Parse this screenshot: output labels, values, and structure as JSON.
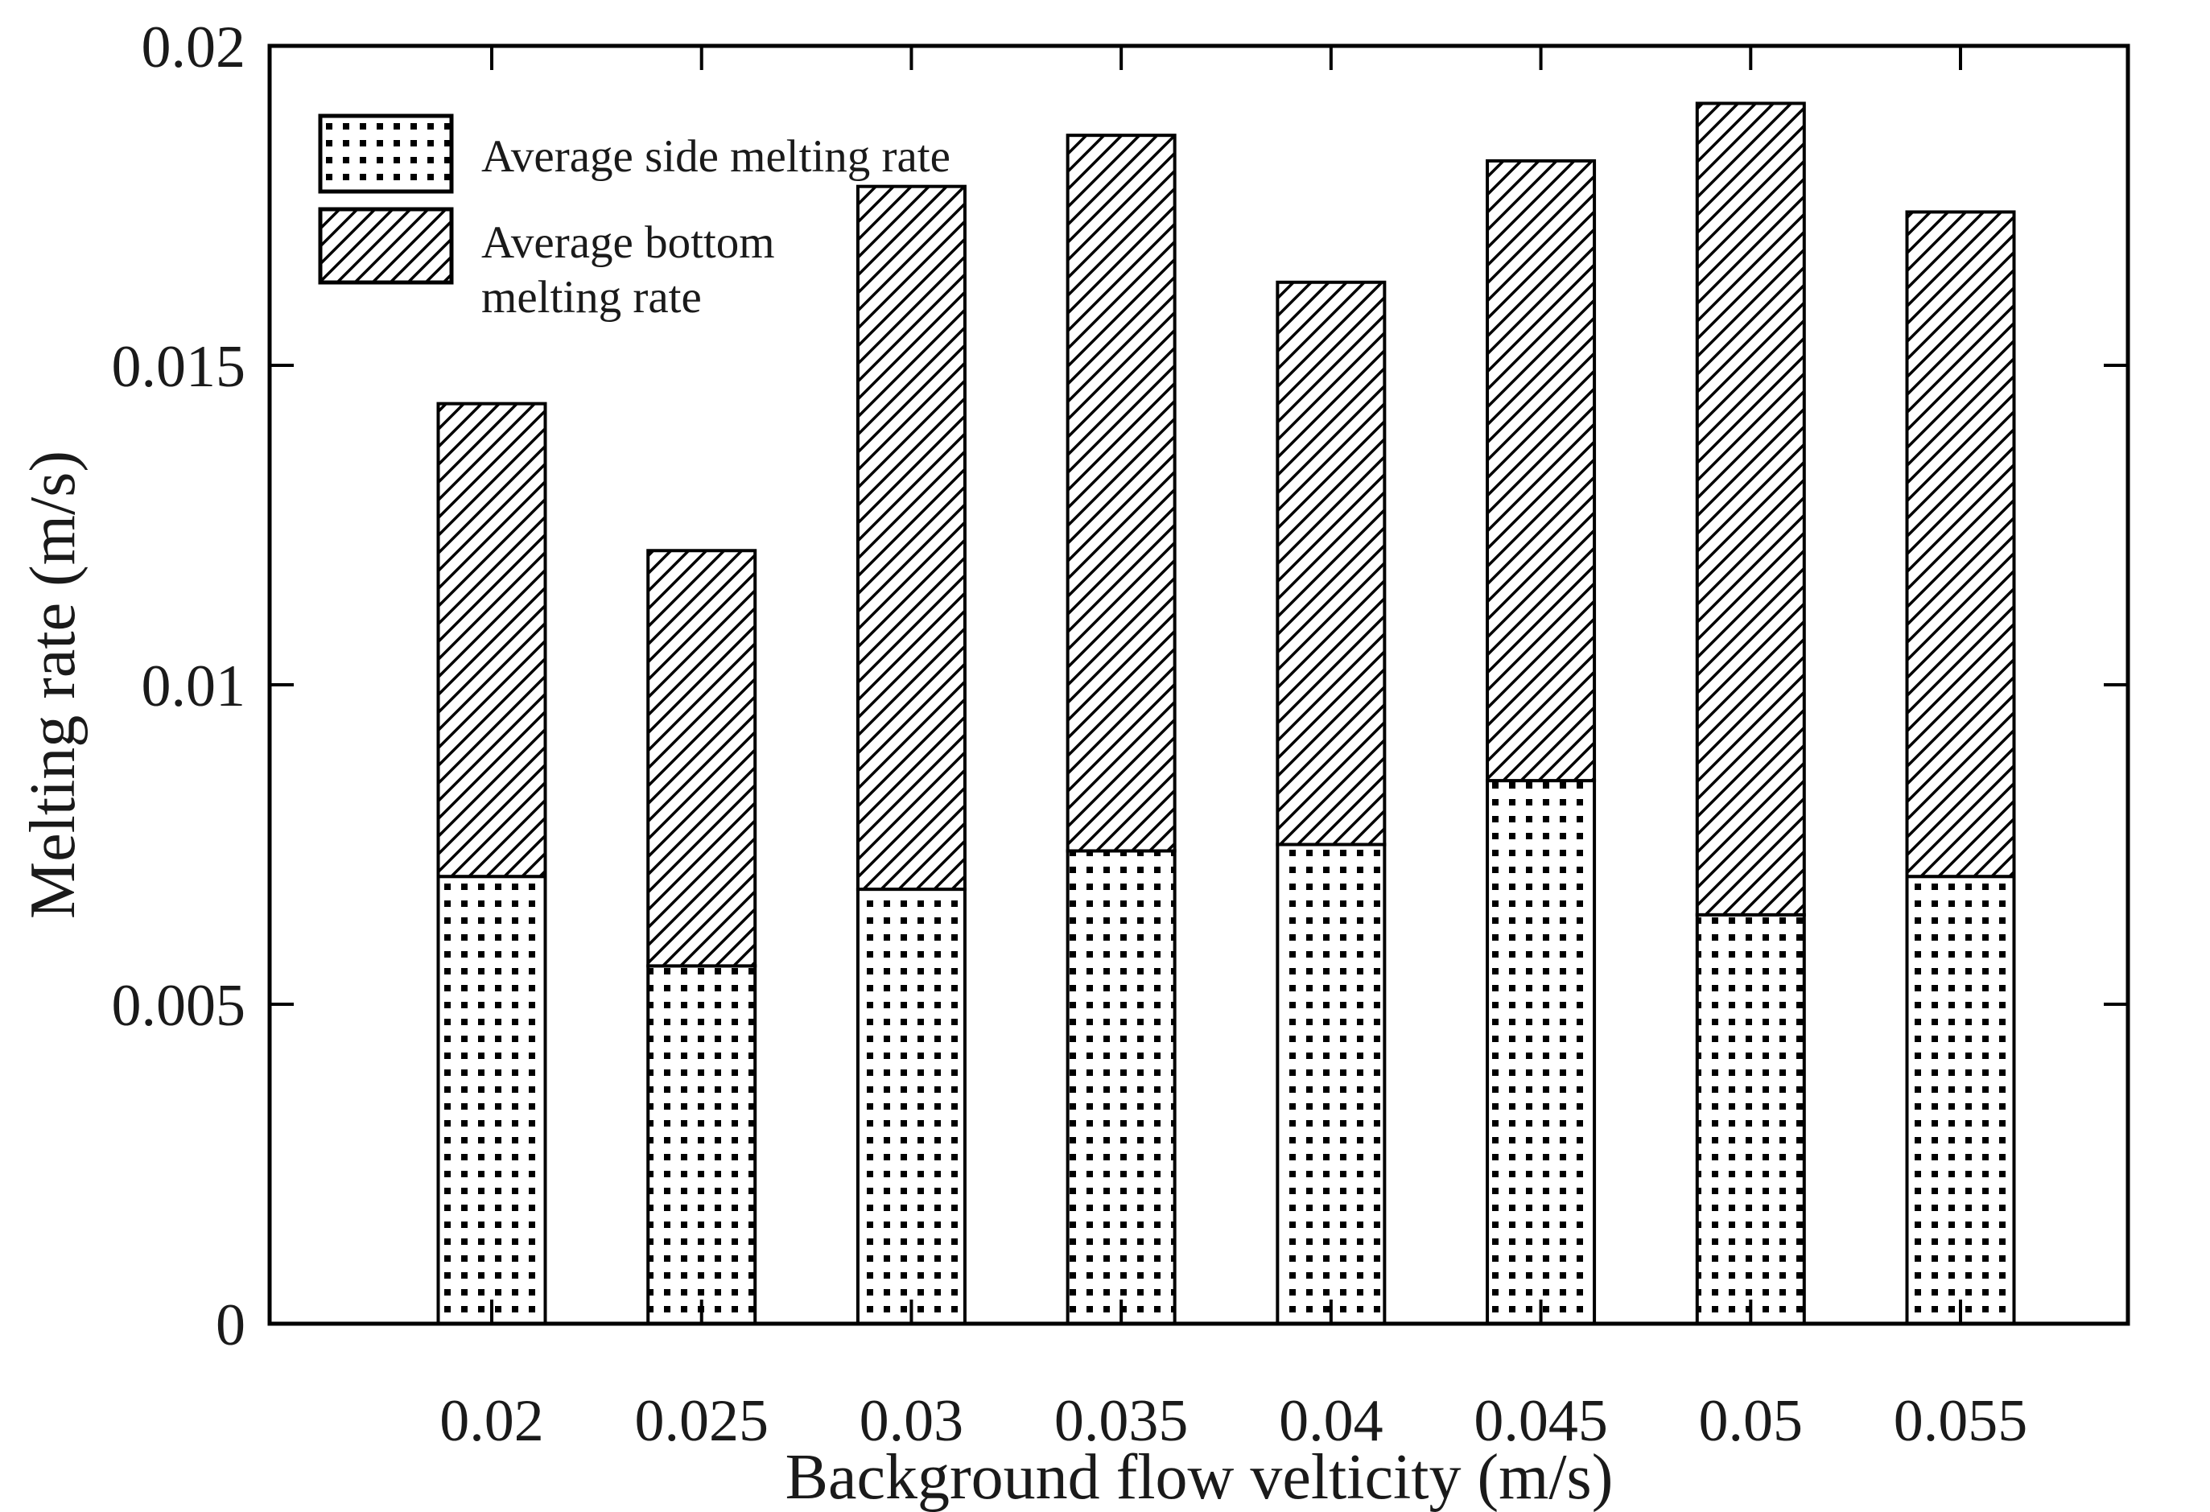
{
  "figure": {
    "background": "#ffffff"
  },
  "chart_data": {
    "type": "bar",
    "stacked": true,
    "title": "",
    "xlabel": "Background flow velticity (m/s)",
    "ylabel": "Melting rate (m/s)",
    "categories": [
      "0.02",
      "0.025",
      "0.03",
      "0.035",
      "0.04",
      "0.045",
      "0.05",
      "0.055"
    ],
    "series": [
      {
        "name": "Average side melting rate",
        "pattern": "dots",
        "values": [
          0.007,
          0.0056,
          0.0068,
          0.0074,
          0.0075,
          0.0085,
          0.0064,
          0.007
        ]
      },
      {
        "name": "Average bottom melting rate",
        "pattern": "diagonal-hatch",
        "values": [
          0.0074,
          0.0065,
          0.011,
          0.0112,
          0.0088,
          0.0097,
          0.0127,
          0.0104
        ]
      }
    ],
    "stack_totals": [
      0.0144,
      0.0121,
      0.0178,
      0.0186,
      0.0163,
      0.0182,
      0.0191,
      0.0174
    ],
    "ylim": [
      0,
      0.02
    ],
    "yticks": [
      {
        "value": 0,
        "label": "0"
      },
      {
        "value": 0.005,
        "label": "0.005"
      },
      {
        "value": 0.01,
        "label": "0.01"
      },
      {
        "value": 0.015,
        "label": "0.015"
      },
      {
        "value": 0.02,
        "label": "0.02"
      }
    ],
    "grid": false,
    "legend_position": "top-left-inside",
    "legend": [
      {
        "label": "Average side melting rate",
        "lines": [
          "Average side melting rate"
        ],
        "pattern": "dots"
      },
      {
        "label": "Average bottom melting rate",
        "lines": [
          "Average bottom",
          "melting rate"
        ],
        "pattern": "diagonal-hatch"
      }
    ],
    "colors": {
      "bar_fill": "#ffffff",
      "stroke": "#000000",
      "text": "#1a1a1a"
    }
  }
}
